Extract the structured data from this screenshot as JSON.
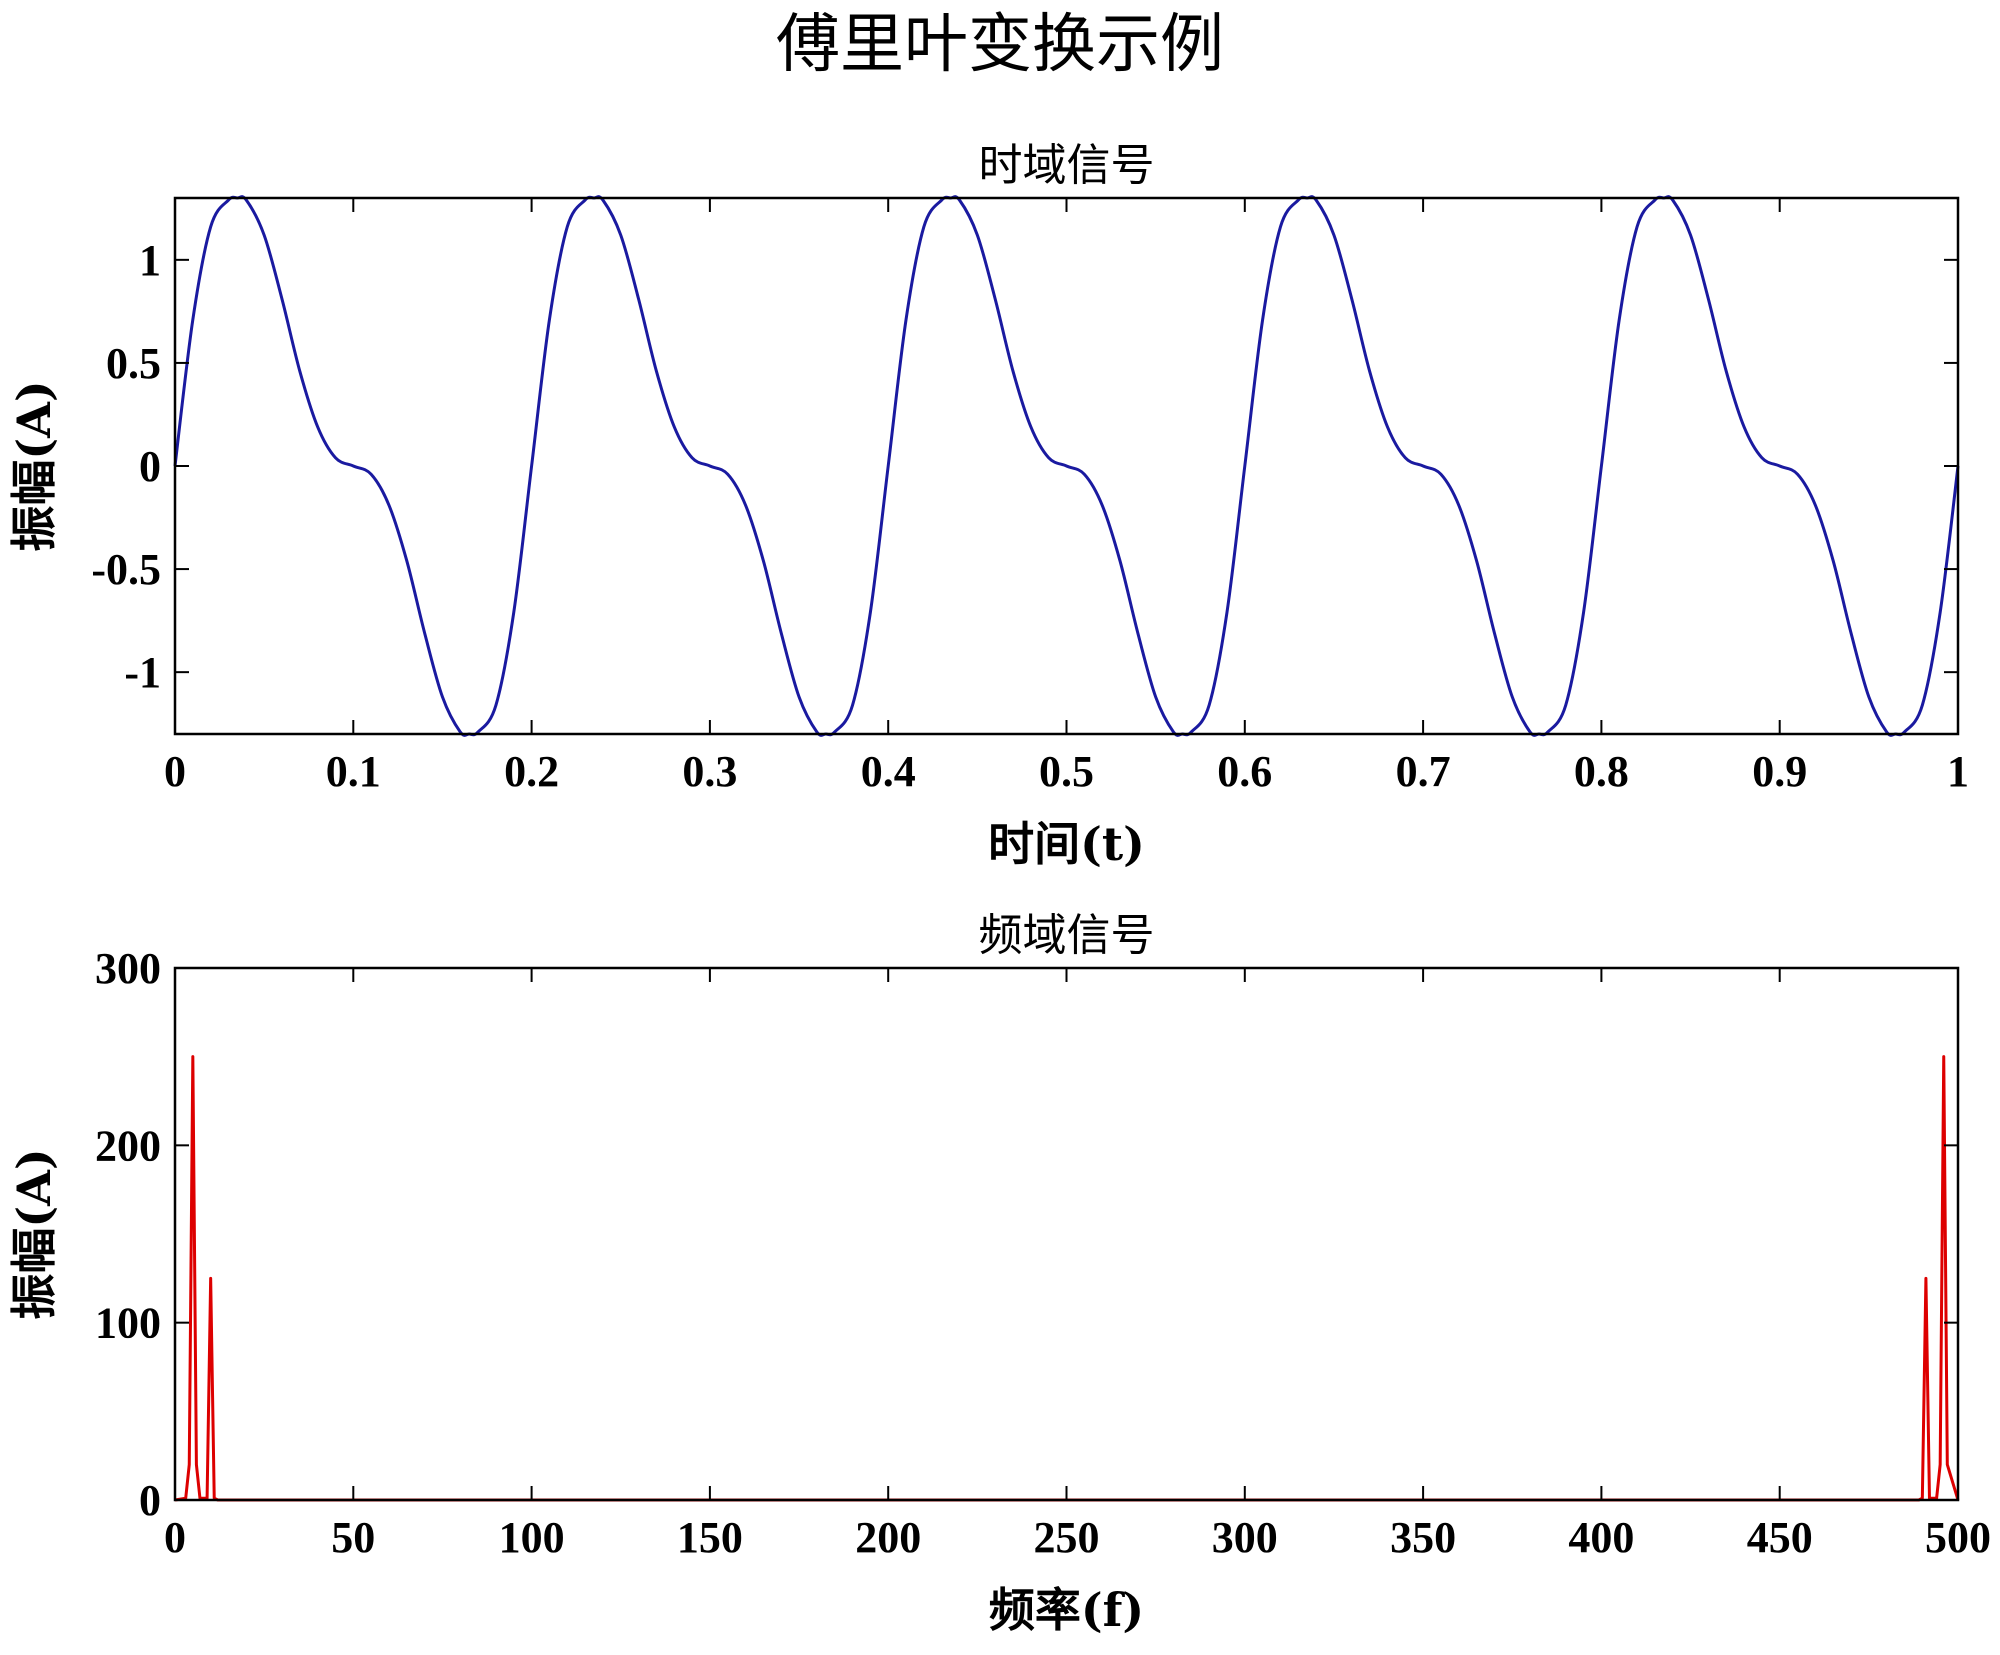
{
  "figure": {
    "title": "傅里叶变换示例",
    "colors": {
      "time_series": "#1a1aa0",
      "freq_series": "#dd0000",
      "frame": "#000000",
      "background": "#ffffff"
    }
  },
  "chart_data": [
    {
      "type": "line",
      "title": "时域信号",
      "xlabel": "时间(t)",
      "ylabel": "振幅(A)",
      "xlim": [
        0,
        1
      ],
      "ylim": [
        -1.3,
        1.3
      ],
      "xticks": [
        "0",
        "0.1",
        "0.2",
        "0.3",
        "0.4",
        "0.5",
        "0.6",
        "0.7",
        "0.8",
        "0.9",
        "1"
      ],
      "xtick_values": [
        0,
        0.1,
        0.2,
        0.3,
        0.4,
        0.5,
        0.6,
        0.7,
        0.8,
        0.9,
        1
      ],
      "yticks": [
        "-1",
        "-0.5",
        "0",
        "0.5",
        "1"
      ],
      "ytick_values": [
        -1,
        -0.5,
        0,
        0.5,
        1
      ],
      "grid": false,
      "series": [
        {
          "color": "#1a1aa0",
          "x": [
            0,
            0.01,
            0.02,
            0.03,
            0.035,
            0.04,
            0.05,
            0.06,
            0.07,
            0.08,
            0.09,
            0.1,
            0.11,
            0.12,
            0.13,
            0.14,
            0.15,
            0.16,
            0.165,
            0.17,
            0.18,
            0.19,
            0.2
          ],
          "y": [
            0,
            0.71,
            1.16,
            1.29,
            1.3,
            1.29,
            1.12,
            0.81,
            0.46,
            0.19,
            0.04,
            0,
            -0.04,
            -0.19,
            -0.46,
            -0.81,
            -1.12,
            -1.29,
            -1.3,
            -1.29,
            -1.16,
            -0.71,
            0
          ],
          "period": 0.2
        }
      ]
    },
    {
      "type": "line",
      "title": "频域信号",
      "xlabel": "频率(f)",
      "ylabel": "振幅(A)",
      "xlim": [
        0,
        500
      ],
      "ylim": [
        0,
        300
      ],
      "xticks": [
        "0",
        "50",
        "100",
        "150",
        "200",
        "250",
        "300",
        "350",
        "400",
        "450",
        "500"
      ],
      "xtick_values": [
        0,
        50,
        100,
        150,
        200,
        250,
        300,
        350,
        400,
        450,
        500
      ],
      "yticks": [
        "0",
        "100",
        "200",
        "300"
      ],
      "ytick_values": [
        0,
        100,
        200,
        300
      ],
      "grid": false,
      "series": [
        {
          "color": "#dd0000",
          "x": [
            0,
            3,
            4,
            5,
            6,
            7,
            9,
            10,
            11,
            12,
            489,
            490,
            491,
            492,
            494,
            495,
            496,
            497,
            500
          ],
          "y": [
            0,
            1,
            20,
            250,
            20,
            1,
            1,
            125,
            1,
            0,
            0,
            1,
            125,
            1,
            1,
            20,
            250,
            20,
            0
          ]
        }
      ]
    }
  ]
}
